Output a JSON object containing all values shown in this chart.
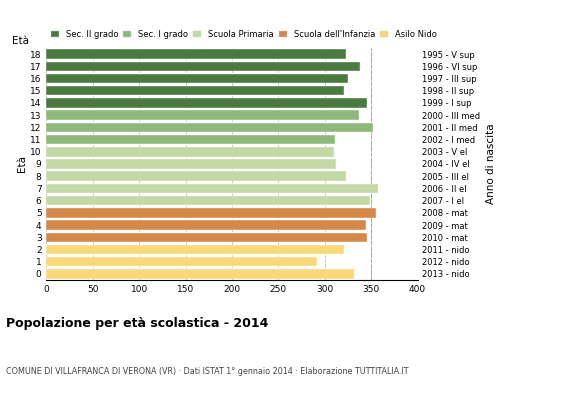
{
  "ages": [
    0,
    1,
    2,
    3,
    4,
    5,
    6,
    7,
    8,
    9,
    10,
    11,
    12,
    13,
    14,
    15,
    16,
    17,
    18
  ],
  "values": [
    331,
    292,
    321,
    345,
    344,
    355,
    349,
    357,
    323,
    312,
    310,
    311,
    352,
    337,
    345,
    321,
    325,
    338,
    323
  ],
  "right_labels": [
    "2013 - nido",
    "2012 - nido",
    "2011 - nido",
    "2010 - mat",
    "2009 - mat",
    "2008 - mat",
    "2007 - I el",
    "2006 - II el",
    "2005 - III el",
    "2004 - IV el",
    "2003 - V el",
    "2002 - I med",
    "2001 - II med",
    "2000 - III med",
    "1999 - I sup",
    "1998 - II sup",
    "1997 - III sup",
    "1996 - VI sup",
    "1995 - V sup"
  ],
  "bar_colors": [
    "#f9d87a",
    "#f9d87a",
    "#f9d87a",
    "#d4884a",
    "#d4884a",
    "#d4884a",
    "#c2d9a5",
    "#c2d9a5",
    "#c2d9a5",
    "#c2d9a5",
    "#c2d9a5",
    "#8db87a",
    "#8db87a",
    "#8db87a",
    "#4a7a40",
    "#4a7a40",
    "#4a7a40",
    "#4a7a40",
    "#4a7a40"
  ],
  "xlim": [
    0,
    400
  ],
  "xticks": [
    0,
    50,
    100,
    150,
    200,
    250,
    300,
    350,
    400
  ],
  "xlabel_main": "Popolazione per età scolastica - 2014",
  "subtitle": "COMUNE DI VILLAFRANCA DI VERONA (VR) · Dati ISTAT 1° gennaio 2014 · Elaborazione TUTTITALIA.IT",
  "ylabel": "Età",
  "right_axis_label": "Anno di nascita",
  "legend_labels": [
    "Sec. II grado",
    "Sec. I grado",
    "Scuola Primaria",
    "Scuola dell'Infanzia",
    "Asilo Nido"
  ],
  "legend_colors": [
    "#4a7a40",
    "#8db87a",
    "#c2d9a5",
    "#d4884a",
    "#f9d87a"
  ],
  "bg_color": "#ffffff",
  "grid_color": "#bbbbbb",
  "bar_height": 0.78,
  "dpi": 100,
  "figwidth": 5.8,
  "figheight": 4.0
}
